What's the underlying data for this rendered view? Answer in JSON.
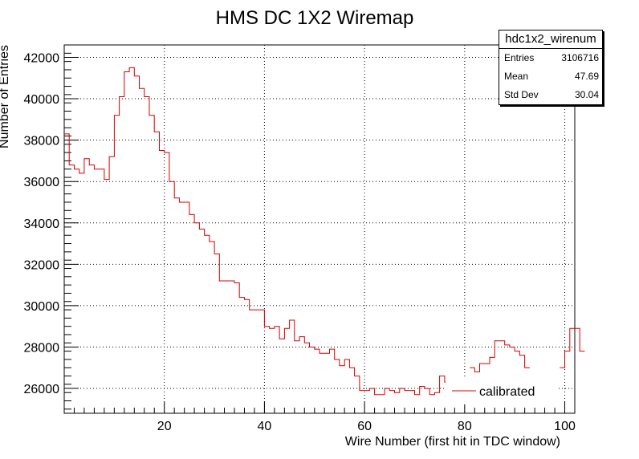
{
  "chart_data": {
    "type": "histogram",
    "title": "HMS DC 1X2 Wiremap",
    "xlabel": "Wire Number (first hit in TDC window)",
    "ylabel": "Number of Entries",
    "xlim": [
      0,
      102
    ],
    "ylim": [
      24800,
      42600
    ],
    "x_ticks": [
      20,
      40,
      60,
      80,
      100
    ],
    "y_ticks": [
      26000,
      28000,
      30000,
      32000,
      34000,
      36000,
      38000,
      40000,
      42000
    ],
    "grid": true,
    "line_color": "#d40000",
    "series": [
      {
        "name": "calibrated",
        "bin_width": 1,
        "x_start": 0,
        "values": [
          38300,
          36800,
          36600,
          36400,
          37100,
          36800,
          36600,
          36600,
          36100,
          37200,
          39200,
          40100,
          41300,
          41500,
          41100,
          40500,
          40100,
          39200,
          38400,
          37500,
          37400,
          36000,
          35200,
          35000,
          35000,
          34400,
          34000,
          33700,
          33400,
          33100,
          32500,
          31200,
          31200,
          31200,
          31100,
          30400,
          30300,
          29800,
          29800,
          29800,
          29000,
          28900,
          29000,
          28400,
          28900,
          29300,
          28300,
          28500,
          28200,
          28000,
          27900,
          27700,
          27700,
          27900,
          27400,
          27100,
          27400,
          27000,
          26600,
          25900,
          25900,
          26000,
          25700,
          25700,
          26000,
          25900,
          25800,
          26000,
          25900,
          25900,
          25700,
          26100,
          26000,
          25700,
          25800,
          26600,
          26300,
          26300,
          26500,
          null,
          null,
          27000,
          26800,
          27200,
          27200,
          27500,
          28300,
          28300,
          28100,
          28000,
          27800,
          27600,
          27000,
          null,
          null,
          null,
          null,
          null,
          null,
          27000,
          27800,
          28900,
          28900,
          27800
        ]
      }
    ],
    "legend": {
      "position": "bottom-right",
      "entries": [
        "calibrated"
      ]
    }
  },
  "stats": {
    "name": "hdc1x2_wirenum",
    "rows": [
      {
        "label": "Entries",
        "value": "3106716"
      },
      {
        "label": "Mean",
        "value": "47.69"
      },
      {
        "label": "Std Dev",
        "value": "30.04"
      }
    ]
  }
}
